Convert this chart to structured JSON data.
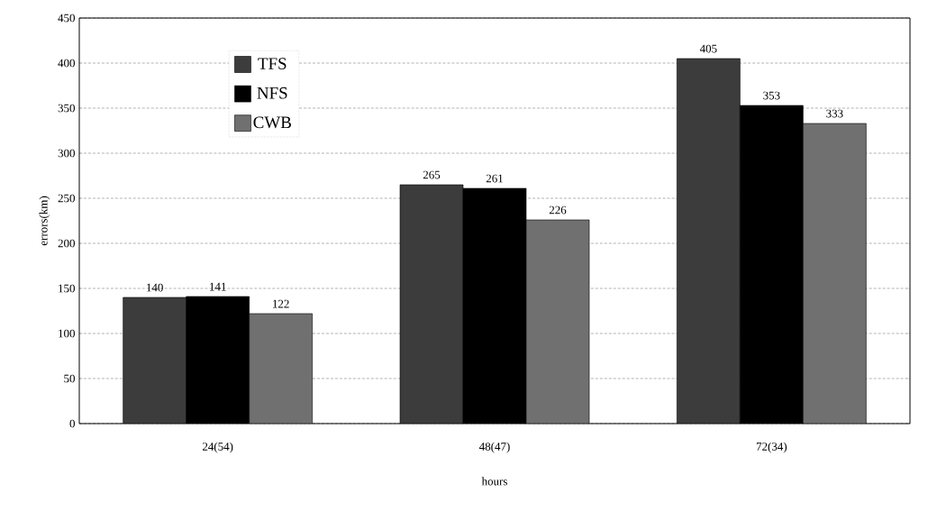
{
  "chart_data": {
    "type": "bar",
    "xlabel": "hours",
    "ylabel": "errors(km)",
    "categories": [
      "24(54)",
      "48(47)",
      "72(34)"
    ],
    "series": [
      {
        "name": "TFS",
        "color": "#3c3c3c",
        "values": [
          140,
          265,
          405
        ]
      },
      {
        "name": "NFS",
        "color": "#000000",
        "values": [
          141,
          261,
          353
        ]
      },
      {
        "name": "CWB",
        "color": "#707070",
        "values": [
          122,
          226,
          333
        ]
      }
    ],
    "ylim": [
      0,
      450
    ],
    "yticks": [
      0,
      50,
      100,
      150,
      200,
      250,
      300,
      350,
      400,
      450
    ],
    "grid": "y",
    "legend": "top left",
    "data_labels": true
  }
}
